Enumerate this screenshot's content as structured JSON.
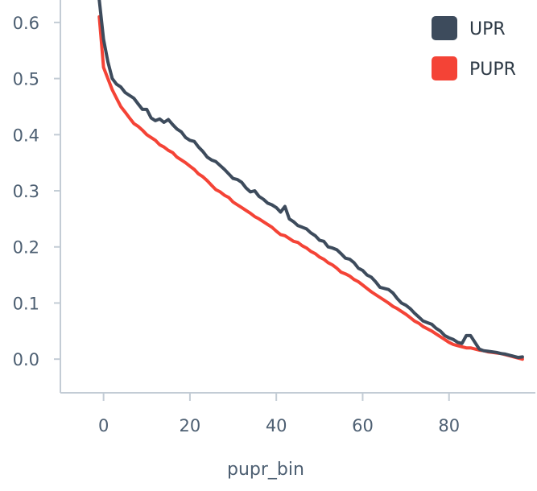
{
  "chart_data": {
    "type": "line",
    "title": "",
    "xlabel": "pupr_bin",
    "ylabel": "",
    "xlim": [
      -10,
      100
    ],
    "ylim": [
      -0.06,
      0.64
    ],
    "x_ticks": [
      0,
      20,
      40,
      60,
      80
    ],
    "y_ticks": [
      0.0,
      0.1,
      0.2,
      0.3,
      0.4,
      0.5,
      0.6
    ],
    "grid": false,
    "legend_position": "top-right",
    "series": [
      {
        "name": "UPR",
        "color": "#3d4b5c",
        "x": [
          -1,
          0,
          1,
          2,
          3,
          4,
          5,
          6,
          7,
          8,
          9,
          10,
          11,
          12,
          13,
          14,
          15,
          16,
          17,
          18,
          19,
          20,
          21,
          22,
          23,
          24,
          25,
          26,
          27,
          28,
          29,
          30,
          31,
          32,
          33,
          34,
          35,
          36,
          37,
          38,
          39,
          40,
          41,
          42,
          43,
          44,
          45,
          46,
          47,
          48,
          49,
          50,
          51,
          52,
          53,
          54,
          55,
          56,
          57,
          58,
          59,
          60,
          61,
          62,
          63,
          64,
          65,
          66,
          67,
          68,
          69,
          70,
          71,
          72,
          73,
          74,
          75,
          76,
          77,
          78,
          79,
          80,
          81,
          82,
          83,
          84,
          85,
          86,
          87,
          88,
          89,
          90,
          91,
          92,
          93,
          94,
          95,
          96,
          97
        ],
        "values": [
          0.64,
          0.57,
          0.53,
          0.5,
          0.49,
          0.485,
          0.475,
          0.47,
          0.465,
          0.455,
          0.445,
          0.445,
          0.43,
          0.425,
          0.428,
          0.422,
          0.427,
          0.418,
          0.41,
          0.405,
          0.395,
          0.39,
          0.388,
          0.378,
          0.37,
          0.36,
          0.355,
          0.352,
          0.345,
          0.338,
          0.33,
          0.322,
          0.32,
          0.315,
          0.305,
          0.298,
          0.3,
          0.29,
          0.285,
          0.278,
          0.275,
          0.27,
          0.262,
          0.272,
          0.25,
          0.245,
          0.238,
          0.235,
          0.232,
          0.225,
          0.22,
          0.212,
          0.21,
          0.2,
          0.198,
          0.195,
          0.188,
          0.18,
          0.178,
          0.172,
          0.162,
          0.158,
          0.15,
          0.146,
          0.138,
          0.128,
          0.126,
          0.124,
          0.118,
          0.108,
          0.1,
          0.096,
          0.09,
          0.082,
          0.075,
          0.068,
          0.065,
          0.062,
          0.055,
          0.05,
          0.042,
          0.038,
          0.035,
          0.03,
          0.028,
          0.042,
          0.042,
          0.03,
          0.018,
          0.015,
          0.014,
          0.013,
          0.012,
          0.01,
          0.009,
          0.007,
          0.005,
          0.003,
          0.004
        ]
      },
      {
        "name": "PUPR",
        "color": "#f44336",
        "x": [
          -1,
          0,
          1,
          2,
          3,
          4,
          5,
          6,
          7,
          8,
          9,
          10,
          11,
          12,
          13,
          14,
          15,
          16,
          17,
          18,
          19,
          20,
          21,
          22,
          23,
          24,
          25,
          26,
          27,
          28,
          29,
          30,
          31,
          32,
          33,
          34,
          35,
          36,
          37,
          38,
          39,
          40,
          41,
          42,
          43,
          44,
          45,
          46,
          47,
          48,
          49,
          50,
          51,
          52,
          53,
          54,
          55,
          56,
          57,
          58,
          59,
          60,
          61,
          62,
          63,
          64,
          65,
          66,
          67,
          68,
          69,
          70,
          71,
          72,
          73,
          74,
          75,
          76,
          77,
          78,
          79,
          80,
          81,
          82,
          83,
          84,
          85,
          86,
          87,
          88,
          89,
          90,
          91,
          92,
          93,
          94,
          95,
          96,
          97
        ],
        "values": [
          0.61,
          0.52,
          0.5,
          0.48,
          0.465,
          0.45,
          0.44,
          0.43,
          0.42,
          0.415,
          0.408,
          0.4,
          0.395,
          0.39,
          0.382,
          0.378,
          0.372,
          0.368,
          0.36,
          0.355,
          0.35,
          0.344,
          0.338,
          0.33,
          0.325,
          0.318,
          0.31,
          0.302,
          0.298,
          0.292,
          0.288,
          0.28,
          0.275,
          0.27,
          0.265,
          0.26,
          0.254,
          0.25,
          0.245,
          0.24,
          0.235,
          0.228,
          0.222,
          0.22,
          0.215,
          0.21,
          0.208,
          0.202,
          0.198,
          0.192,
          0.188,
          0.182,
          0.178,
          0.172,
          0.168,
          0.162,
          0.155,
          0.152,
          0.148,
          0.142,
          0.138,
          0.132,
          0.126,
          0.12,
          0.115,
          0.11,
          0.105,
          0.1,
          0.094,
          0.09,
          0.085,
          0.08,
          0.074,
          0.068,
          0.064,
          0.058,
          0.054,
          0.05,
          0.045,
          0.04,
          0.035,
          0.03,
          0.026,
          0.024,
          0.022,
          0.02,
          0.02,
          0.018,
          0.016,
          0.015,
          0.013,
          0.012,
          0.011,
          0.01,
          0.008,
          0.006,
          0.004,
          0.002,
          0.0
        ]
      }
    ]
  }
}
